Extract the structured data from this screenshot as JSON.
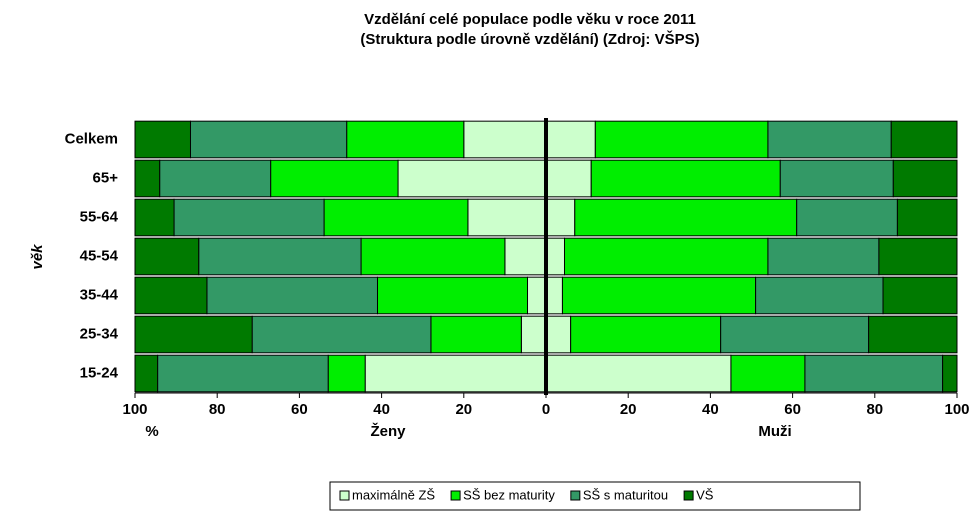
{
  "chart_data": {
    "type": "butterfly_stacked_bar",
    "title": "Vzdělání celé populace podle věku v roce 2011",
    "subtitle": "(Struktura podle úrovně vzdělání) (Zdroj: VŠPS)",
    "y_label": "věk",
    "x_unit_label": "%",
    "left_label": "Ženy",
    "right_label": "Muži",
    "categories": [
      "Celkem",
      "65+",
      "55-64",
      "45-54",
      "35-44",
      "25-34",
      "15-24"
    ],
    "xlim": [
      0,
      100
    ],
    "xticks": [
      0,
      20,
      40,
      60,
      80,
      100
    ],
    "series": [
      {
        "name": "maximálně ZŠ",
        "color": "#ccffcc",
        "left_values": [
          20,
          36,
          19,
          10,
          4.5,
          6,
          44
        ],
        "right_values": [
          12,
          11,
          7,
          4.5,
          4,
          6,
          45
        ]
      },
      {
        "name": "SŠ bez maturity",
        "color": "#00ee00",
        "left_values": [
          28.5,
          31,
          35,
          35,
          36.5,
          22,
          9
        ],
        "right_values": [
          42,
          46,
          54,
          49.5,
          47,
          36.5,
          18
        ]
      },
      {
        "name": "SŠ s maturitou",
        "color": "#339966",
        "left_values": [
          38,
          27,
          36.5,
          39.5,
          41.5,
          43.5,
          41.5
        ],
        "right_values": [
          30,
          27.5,
          24.5,
          27,
          31,
          36,
          33.5
        ]
      },
      {
        "name": "VŠ",
        "color": "#007a00",
        "left_values": [
          13.5,
          6,
          9.5,
          15.5,
          17.5,
          28.5,
          5.5
        ],
        "right_values": [
          16,
          15.5,
          14.5,
          19,
          18,
          21.5,
          3.5
        ]
      }
    ]
  }
}
